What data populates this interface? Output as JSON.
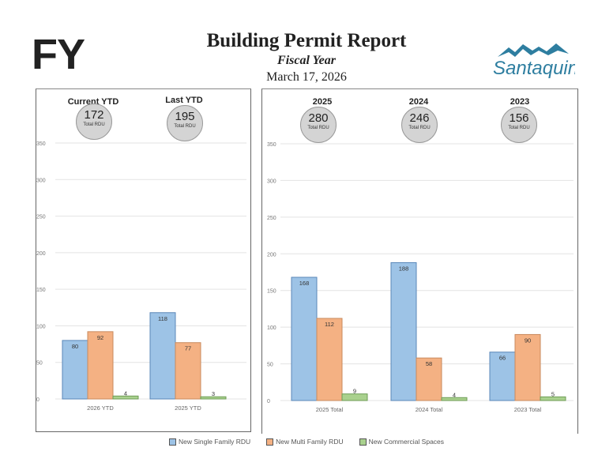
{
  "header": {
    "fy": "FY",
    "title": "Building Permit Report",
    "subtitle": "Fiscal Year",
    "date": "March 17, 2026",
    "logo_text": "Santaquin"
  },
  "summary_left": [
    {
      "label": "Current YTD",
      "value": "172",
      "unit": "Total RDU"
    },
    {
      "label": "Last YTD",
      "value": "195",
      "unit": "Total RDU"
    }
  ],
  "summary_right": [
    {
      "label": "2025",
      "value": "280",
      "unit": "Total RDU"
    },
    {
      "label": "2024",
      "value": "246",
      "unit": "Total RDU"
    },
    {
      "label": "2023",
      "value": "156",
      "unit": "Total RDU"
    }
  ],
  "colors": {
    "single": "#9dc3e6",
    "multi": "#f4b183",
    "commercial": "#a9d18e"
  },
  "legend": [
    "New Single Family RDU",
    "New Multi Family RDU",
    "New Commercial Spaces"
  ],
  "chart_data": [
    {
      "type": "bar",
      "categories": [
        "2026 YTD",
        "2025 YTD"
      ],
      "ylim": [
        0,
        350
      ],
      "yticks": [
        "0",
        "50",
        "100",
        "150",
        "200",
        "250",
        "300",
        "350"
      ],
      "grid": true,
      "series": [
        {
          "name": "New Single Family RDU",
          "values": [
            80,
            118
          ]
        },
        {
          "name": "New Multi Family RDU",
          "values": [
            92,
            77
          ]
        },
        {
          "name": "New Commercial Spaces",
          "values": [
            4,
            3
          ]
        }
      ]
    },
    {
      "type": "bar",
      "categories": [
        "2025 Total",
        "2024 Total",
        "2023 Total"
      ],
      "ylim": [
        0,
        350
      ],
      "yticks": [
        "0",
        "50",
        "100",
        "150",
        "200",
        "250",
        "300",
        "350"
      ],
      "grid": true,
      "series": [
        {
          "name": "New Single Family RDU",
          "values": [
            168,
            188,
            66
          ]
        },
        {
          "name": "New Multi Family RDU",
          "values": [
            112,
            58,
            90
          ]
        },
        {
          "name": "New Commercial Spaces",
          "values": [
            9,
            4,
            5
          ]
        }
      ]
    }
  ]
}
